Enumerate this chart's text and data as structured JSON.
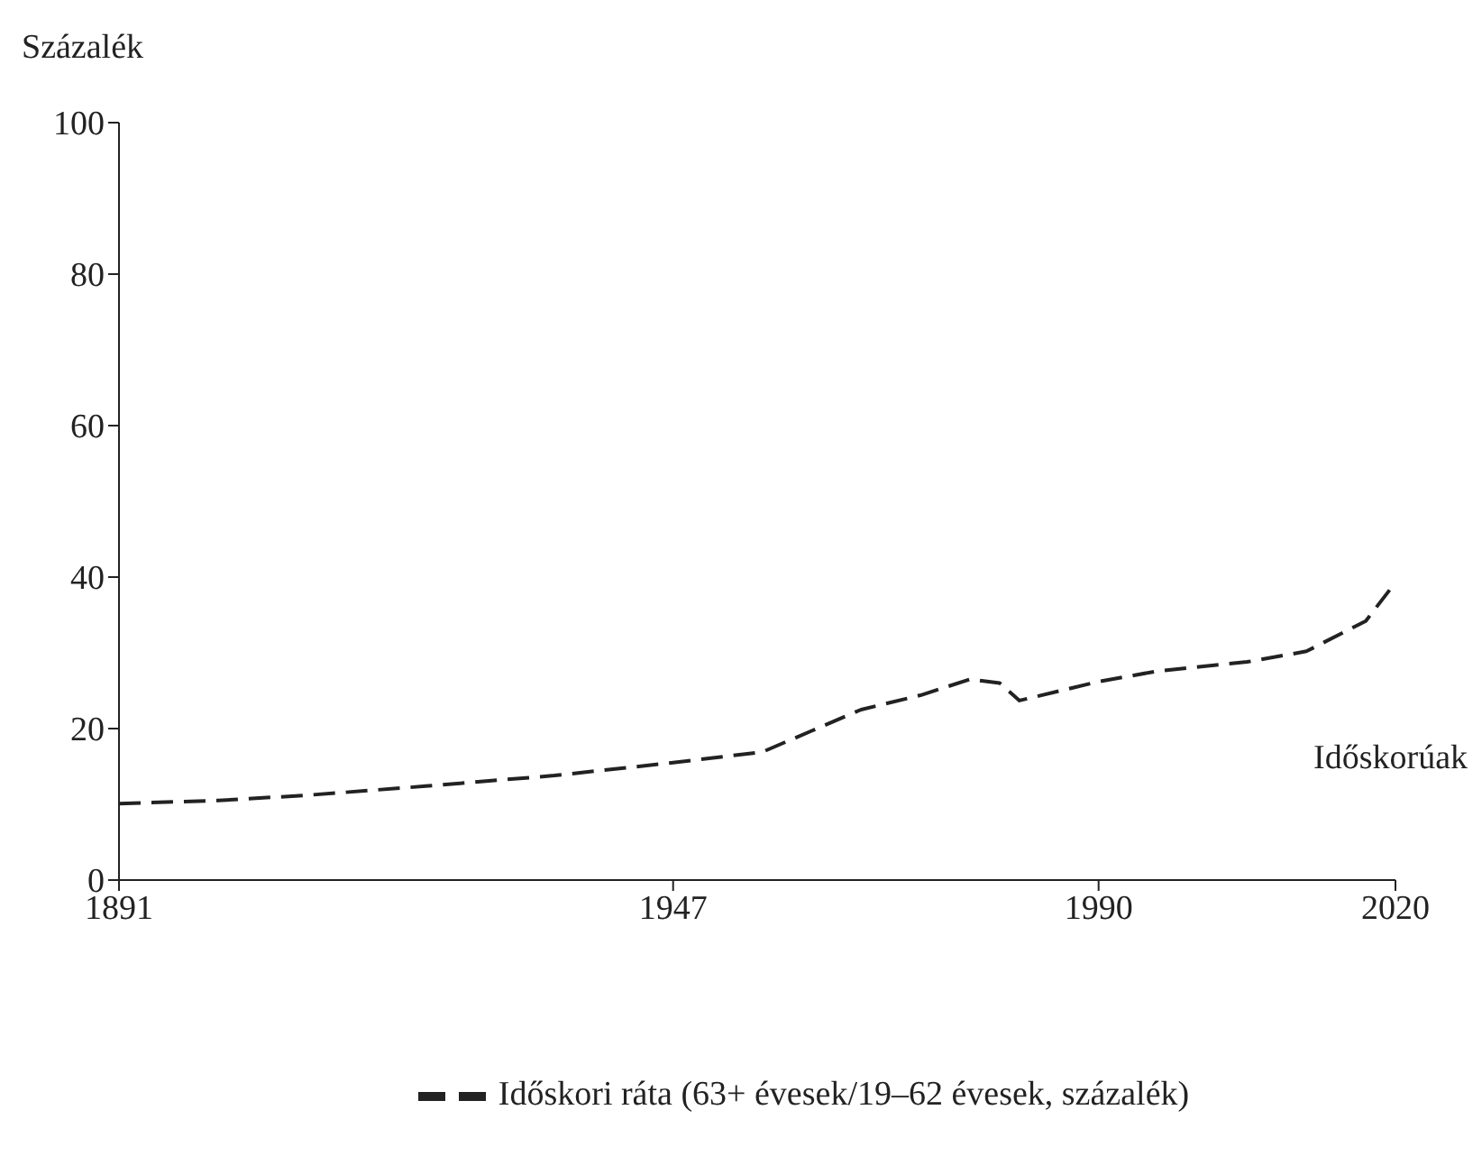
{
  "chart_data": {
    "type": "line",
    "ylabel": "Százalék",
    "annotations": [
      "Időskorúak"
    ],
    "xlim": [
      1891,
      2020
    ],
    "xticks": [
      1891,
      1947,
      1990,
      2020
    ],
    "ylim": [
      0,
      100
    ],
    "yticks": [
      0,
      20,
      40,
      60,
      80,
      100
    ],
    "grid": false,
    "legend": "bottom",
    "marker": "none",
    "line_style": "dashed",
    "x": [
      1891,
      1901,
      1910,
      1922,
      1935,
      1947,
      1956,
      1961,
      1966,
      1972,
      1977,
      1980,
      1982,
      1990,
      1996,
      2005,
      2011,
      2017,
      2020
    ],
    "series": [
      {
        "name": "Időskori ráta (63+ évesek/19–62 évesek, százalék)",
        "color": "#222222",
        "values": [
          10.1,
          10.5,
          11.2,
          12.4,
          13.8,
          15.5,
          16.9,
          19.7,
          22.5,
          24.4,
          26.5,
          26,
          23.7,
          26.2,
          27.6,
          28.8,
          30.2,
          34.2,
          39.3
        ]
      }
    ]
  }
}
